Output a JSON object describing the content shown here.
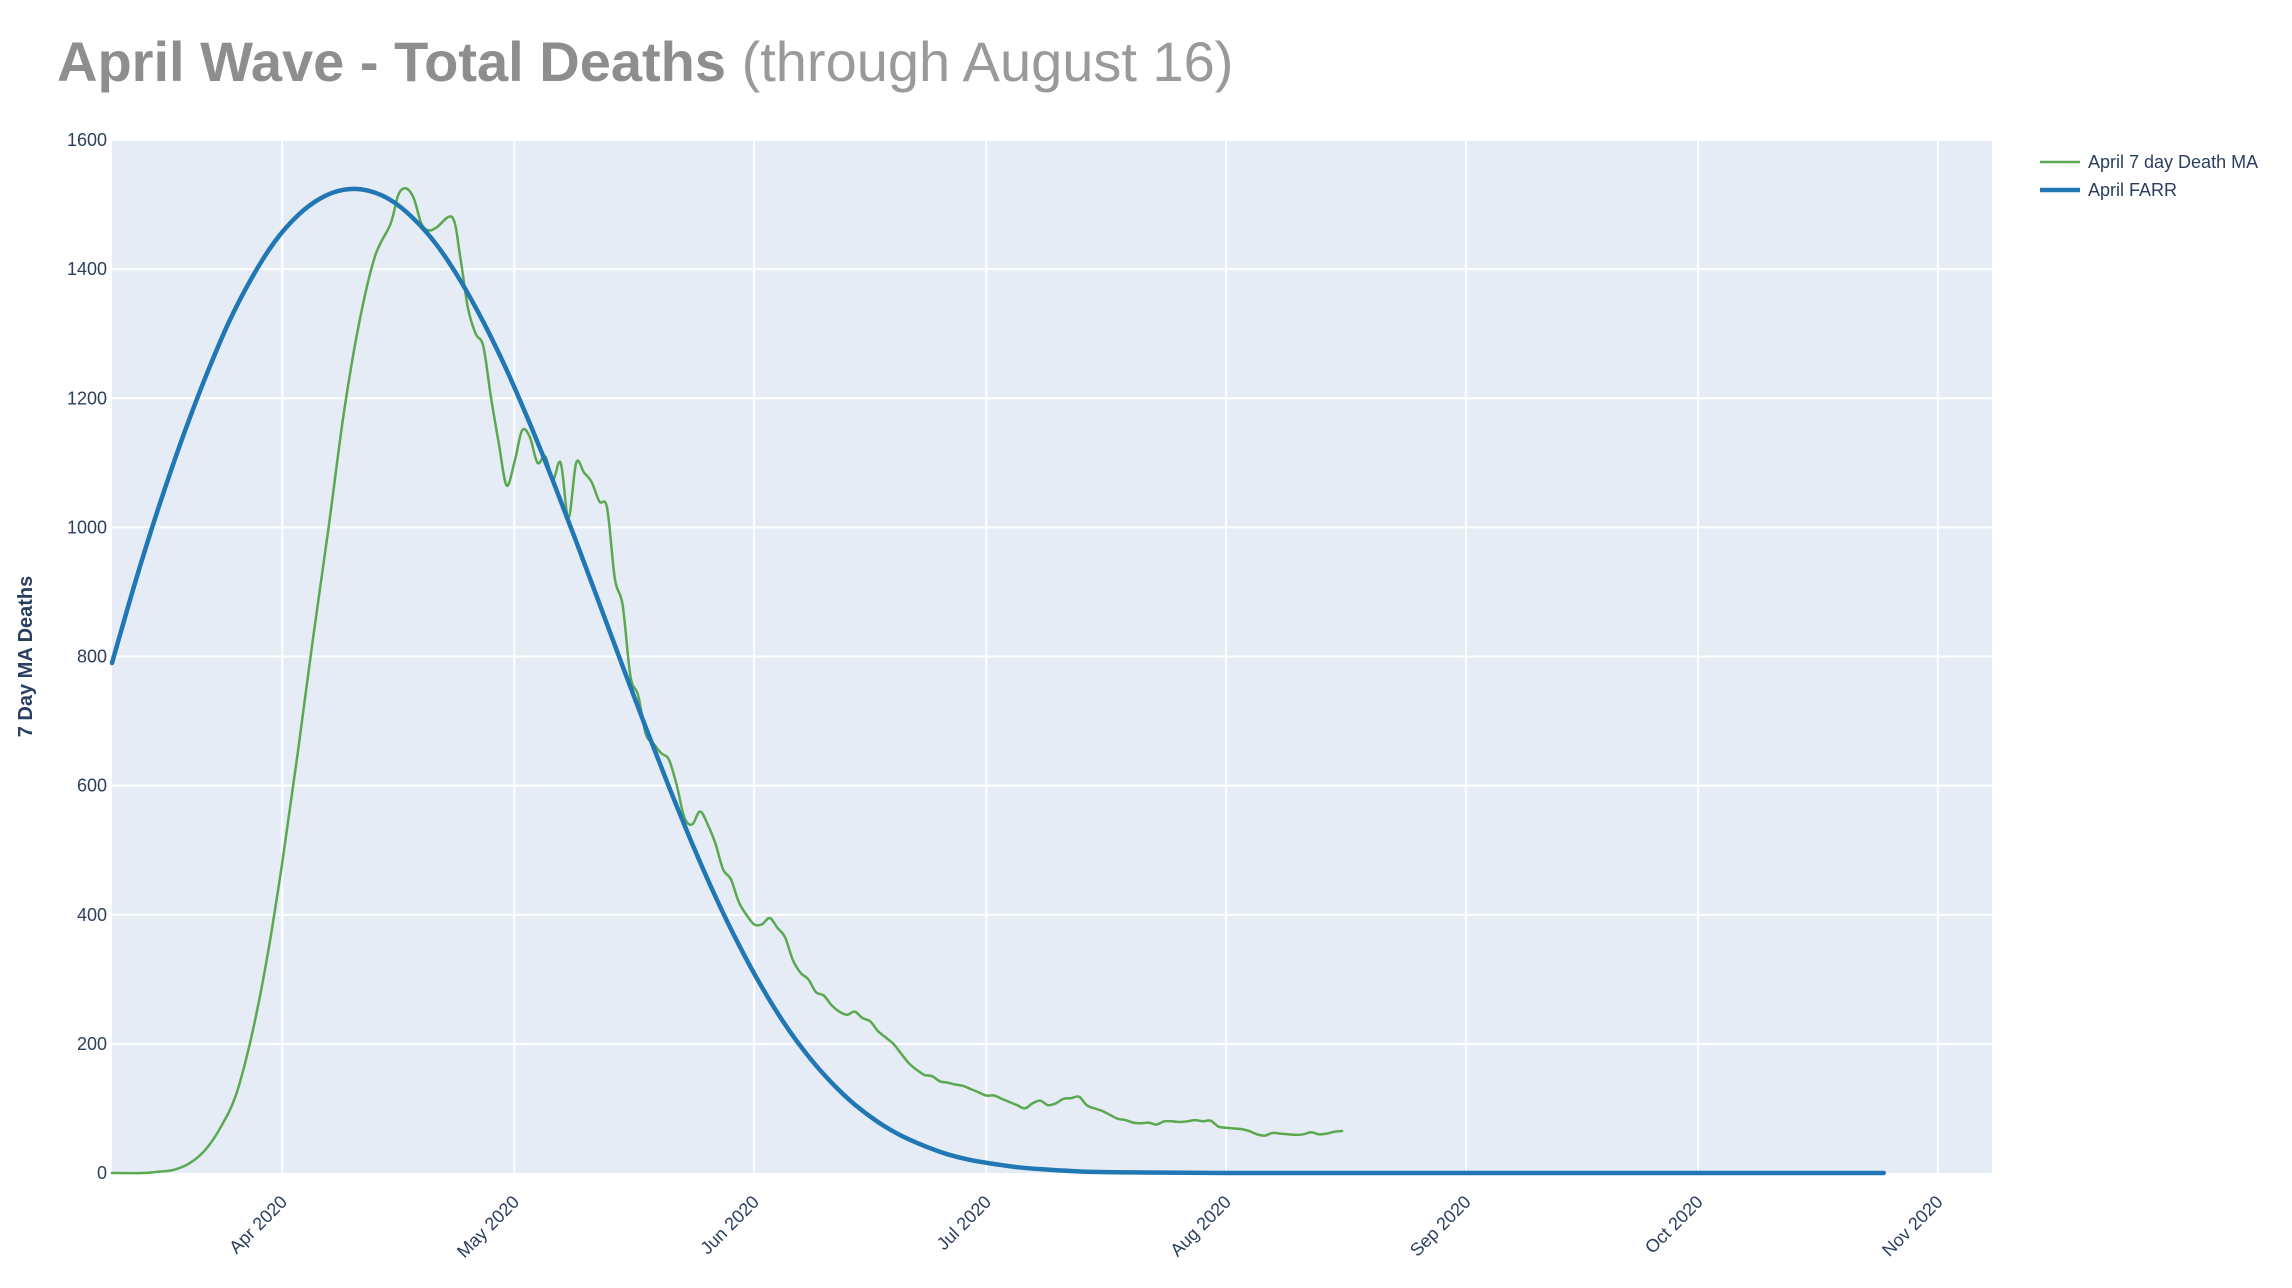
{
  "title": {
    "main": "April Wave - Total Deaths",
    "sub": "(through August 16)"
  },
  "chart_data": {
    "type": "line",
    "ylabel": "7 Day MA Deaths",
    "xlabel": "",
    "ylim": [
      0,
      1600
    ],
    "xlim": [
      "2020-03-10",
      "2020-11-08"
    ],
    "y_ticks": [
      0,
      200,
      400,
      600,
      800,
      1000,
      1200,
      1400,
      1600
    ],
    "x_ticks": [
      {
        "date": "2020-04-01",
        "label": "Apr 2020"
      },
      {
        "date": "2020-05-01",
        "label": "May 2020"
      },
      {
        "date": "2020-06-01",
        "label": "Jun 2020"
      },
      {
        "date": "2020-07-01",
        "label": "Jul 2020"
      },
      {
        "date": "2020-08-01",
        "label": "Aug 2020"
      },
      {
        "date": "2020-09-01",
        "label": "Sep 2020"
      },
      {
        "date": "2020-10-01",
        "label": "Oct 2020"
      },
      {
        "date": "2020-11-01",
        "label": "Nov 2020"
      }
    ],
    "grid": true,
    "legend_position": "top-right",
    "colors": {
      "plot_bg": "#e5ecf6",
      "grid": "#ffffff",
      "ma": "#5aa84f",
      "farr": "#2077b4"
    },
    "series": [
      {
        "name": "April 7 day Death MA",
        "color": "#5aa84f",
        "points": [
          [
            "2020-03-10",
            0
          ],
          [
            "2020-03-14",
            0
          ],
          [
            "2020-03-16",
            2
          ],
          [
            "2020-03-18",
            5
          ],
          [
            "2020-03-20",
            15
          ],
          [
            "2020-03-22",
            35
          ],
          [
            "2020-03-24",
            70
          ],
          [
            "2020-03-26",
            120
          ],
          [
            "2020-03-28",
            210
          ],
          [
            "2020-03-30",
            330
          ],
          [
            "2020-04-01",
            480
          ],
          [
            "2020-04-03",
            650
          ],
          [
            "2020-04-05",
            830
          ],
          [
            "2020-04-07",
            1000
          ],
          [
            "2020-04-09",
            1180
          ],
          [
            "2020-04-11",
            1320
          ],
          [
            "2020-04-13",
            1420
          ],
          [
            "2020-04-15",
            1470
          ],
          [
            "2020-04-16",
            1515
          ],
          [
            "2020-04-17",
            1525
          ],
          [
            "2020-04-18",
            1510
          ],
          [
            "2020-04-19",
            1470
          ],
          [
            "2020-04-20",
            1460
          ],
          [
            "2020-04-21",
            1465
          ],
          [
            "2020-04-23",
            1480
          ],
          [
            "2020-04-24",
            1420
          ],
          [
            "2020-04-25",
            1340
          ],
          [
            "2020-04-26",
            1300
          ],
          [
            "2020-04-27",
            1280
          ],
          [
            "2020-04-28",
            1200
          ],
          [
            "2020-04-29",
            1130
          ],
          [
            "2020-04-30",
            1065
          ],
          [
            "2020-05-01",
            1100
          ],
          [
            "2020-05-02",
            1150
          ],
          [
            "2020-05-03",
            1140
          ],
          [
            "2020-05-04",
            1100
          ],
          [
            "2020-05-05",
            1110
          ],
          [
            "2020-05-06",
            1075
          ],
          [
            "2020-05-07",
            1100
          ],
          [
            "2020-05-08",
            1015
          ],
          [
            "2020-05-09",
            1100
          ],
          [
            "2020-05-10",
            1085
          ],
          [
            "2020-05-11",
            1070
          ],
          [
            "2020-05-12",
            1040
          ],
          [
            "2020-05-13",
            1030
          ],
          [
            "2020-05-14",
            920
          ],
          [
            "2020-05-15",
            880
          ],
          [
            "2020-05-16",
            770
          ],
          [
            "2020-05-17",
            740
          ],
          [
            "2020-05-18",
            680
          ],
          [
            "2020-05-19",
            665
          ],
          [
            "2020-05-20",
            650
          ],
          [
            "2020-05-21",
            640
          ],
          [
            "2020-05-22",
            600
          ],
          [
            "2020-05-23",
            550
          ],
          [
            "2020-05-24",
            540
          ],
          [
            "2020-05-25",
            560
          ],
          [
            "2020-05-26",
            540
          ],
          [
            "2020-05-27",
            510
          ],
          [
            "2020-05-28",
            470
          ],
          [
            "2020-05-29",
            455
          ],
          [
            "2020-05-30",
            420
          ],
          [
            "2020-05-31",
            400
          ],
          [
            "2020-06-01",
            385
          ],
          [
            "2020-06-02",
            385
          ],
          [
            "2020-06-03",
            395
          ],
          [
            "2020-06-04",
            380
          ],
          [
            "2020-06-05",
            365
          ],
          [
            "2020-06-06",
            330
          ],
          [
            "2020-06-07",
            310
          ],
          [
            "2020-06-08",
            300
          ],
          [
            "2020-06-09",
            280
          ],
          [
            "2020-06-10",
            275
          ],
          [
            "2020-06-11",
            260
          ],
          [
            "2020-06-12",
            250
          ],
          [
            "2020-06-13",
            245
          ],
          [
            "2020-06-14",
            250
          ],
          [
            "2020-06-15",
            240
          ],
          [
            "2020-06-16",
            235
          ],
          [
            "2020-06-17",
            220
          ],
          [
            "2020-06-18",
            210
          ],
          [
            "2020-06-19",
            200
          ],
          [
            "2020-06-20",
            185
          ],
          [
            "2020-06-21",
            170
          ],
          [
            "2020-06-22",
            160
          ],
          [
            "2020-06-23",
            152
          ],
          [
            "2020-06-24",
            150
          ],
          [
            "2020-06-25",
            142
          ],
          [
            "2020-06-26",
            140
          ],
          [
            "2020-06-27",
            137
          ],
          [
            "2020-06-28",
            135
          ],
          [
            "2020-06-29",
            130
          ],
          [
            "2020-06-30",
            125
          ],
          [
            "2020-07-01",
            120
          ],
          [
            "2020-07-02",
            120
          ],
          [
            "2020-07-03",
            115
          ],
          [
            "2020-07-04",
            110
          ],
          [
            "2020-07-05",
            105
          ],
          [
            "2020-07-06",
            100
          ],
          [
            "2020-07-07",
            108
          ],
          [
            "2020-07-08",
            112
          ],
          [
            "2020-07-09",
            105
          ],
          [
            "2020-07-10",
            108
          ],
          [
            "2020-07-11",
            115
          ],
          [
            "2020-07-12",
            116
          ],
          [
            "2020-07-13",
            118
          ],
          [
            "2020-07-14",
            105
          ],
          [
            "2020-07-15",
            100
          ],
          [
            "2020-07-16",
            96
          ],
          [
            "2020-07-17",
            90
          ],
          [
            "2020-07-18",
            84
          ],
          [
            "2020-07-19",
            82
          ],
          [
            "2020-07-20",
            78
          ],
          [
            "2020-07-21",
            77
          ],
          [
            "2020-07-22",
            78
          ],
          [
            "2020-07-23",
            75
          ],
          [
            "2020-07-24",
            80
          ],
          [
            "2020-07-25",
            80
          ],
          [
            "2020-07-26",
            79
          ],
          [
            "2020-07-27",
            80
          ],
          [
            "2020-07-28",
            82
          ],
          [
            "2020-07-29",
            80
          ],
          [
            "2020-07-30",
            81
          ],
          [
            "2020-07-31",
            72
          ],
          [
            "2020-08-01",
            70
          ],
          [
            "2020-08-02",
            69
          ],
          [
            "2020-08-03",
            68
          ],
          [
            "2020-08-04",
            65
          ],
          [
            "2020-08-05",
            60
          ],
          [
            "2020-08-06",
            58
          ],
          [
            "2020-08-07",
            62
          ],
          [
            "2020-08-08",
            61
          ],
          [
            "2020-08-09",
            60
          ],
          [
            "2020-08-10",
            59
          ],
          [
            "2020-08-11",
            60
          ],
          [
            "2020-08-12",
            63
          ],
          [
            "2020-08-13",
            60
          ],
          [
            "2020-08-14",
            61
          ],
          [
            "2020-08-15",
            64
          ],
          [
            "2020-08-16",
            65
          ]
        ]
      },
      {
        "name": "April FARR",
        "color": "#2077b4",
        "points": [
          [
            "2020-03-10",
            790
          ],
          [
            "2020-03-13",
            915
          ],
          [
            "2020-03-16",
            1030
          ],
          [
            "2020-03-19",
            1135
          ],
          [
            "2020-03-22",
            1230
          ],
          [
            "2020-03-25",
            1315
          ],
          [
            "2020-03-28",
            1385
          ],
          [
            "2020-03-31",
            1442
          ],
          [
            "2020-04-03",
            1483
          ],
          [
            "2020-04-06",
            1510
          ],
          [
            "2020-04-09",
            1523
          ],
          [
            "2020-04-12",
            1522
          ],
          [
            "2020-04-15",
            1507
          ],
          [
            "2020-04-18",
            1478
          ],
          [
            "2020-04-21",
            1437
          ],
          [
            "2020-04-24",
            1383
          ],
          [
            "2020-04-27",
            1318
          ],
          [
            "2020-04-30",
            1244
          ],
          [
            "2020-05-03",
            1161
          ],
          [
            "2020-05-06",
            1072
          ],
          [
            "2020-05-09",
            978
          ],
          [
            "2020-05-12",
            882
          ],
          [
            "2020-05-15",
            785
          ],
          [
            "2020-05-18",
            690
          ],
          [
            "2020-05-21",
            598
          ],
          [
            "2020-05-24",
            510
          ],
          [
            "2020-05-27",
            428
          ],
          [
            "2020-05-30",
            354
          ],
          [
            "2020-06-02",
            288
          ],
          [
            "2020-06-05",
            230
          ],
          [
            "2020-06-08",
            181
          ],
          [
            "2020-06-11",
            140
          ],
          [
            "2020-06-14",
            106
          ],
          [
            "2020-06-17",
            79
          ],
          [
            "2020-06-20",
            58
          ],
          [
            "2020-06-23",
            42
          ],
          [
            "2020-06-26",
            29
          ],
          [
            "2020-06-29",
            20
          ],
          [
            "2020-07-02",
            14
          ],
          [
            "2020-07-05",
            9
          ],
          [
            "2020-07-08",
            6
          ],
          [
            "2020-07-14",
            2
          ],
          [
            "2020-07-20",
            1
          ],
          [
            "2020-08-01",
            0
          ],
          [
            "2020-09-01",
            0
          ],
          [
            "2020-10-01",
            0
          ],
          [
            "2020-10-25",
            0
          ]
        ]
      }
    ]
  }
}
